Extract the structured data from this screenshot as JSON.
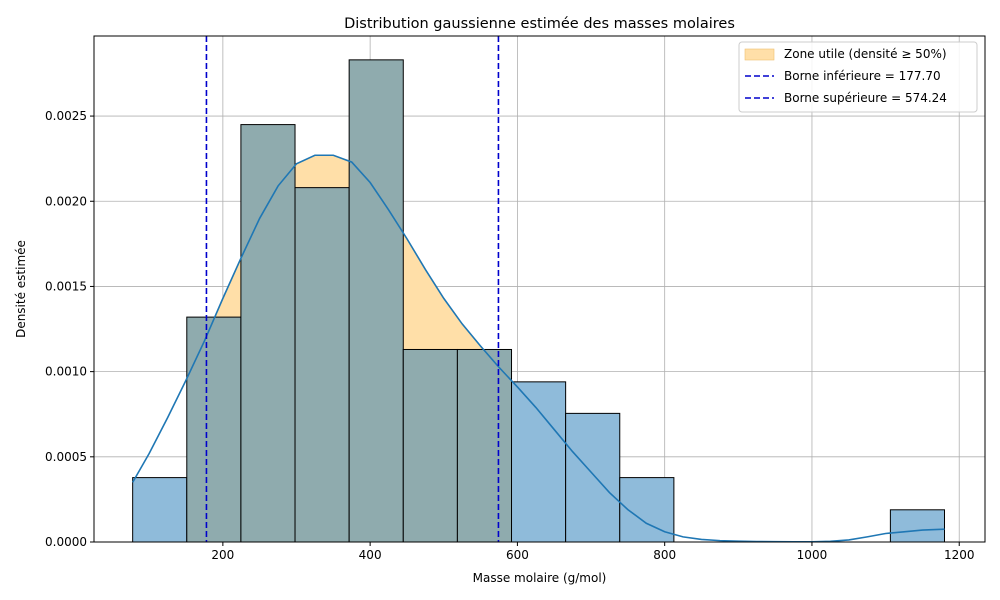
{
  "chart_data": {
    "type": "bar",
    "title": "Distribution gaussienne estimée des masses molaires",
    "xlabel": "Masse molaire (g/mol)",
    "ylabel": "Densité estimée",
    "xlim": [
      25,
      1235
    ],
    "ylim": [
      0,
      0.00297
    ],
    "xticks": [
      200,
      400,
      600,
      800,
      1000,
      1200
    ],
    "yticks": [
      0.0,
      0.0005,
      0.001,
      0.0015,
      0.002,
      0.0025
    ],
    "ytick_labels": [
      "0.0000",
      "0.0005",
      "0.0010",
      "0.0015",
      "0.0020",
      "0.0025"
    ],
    "grid": true,
    "legend_position": "top-right",
    "histogram": {
      "bin_edges": [
        77.5,
        151,
        224.5,
        298,
        371.5,
        445,
        518.5,
        592,
        665.5,
        739,
        812.5,
        886,
        959.5,
        1033,
        1106.5,
        1180
      ],
      "densities": [
        0.000378,
        0.00132,
        0.00245,
        0.00208,
        0.00283,
        0.00113,
        0.00113,
        0.00094,
        0.000755,
        0.000378,
        0,
        0,
        0,
        0,
        0.000189
      ],
      "color": "#1f77b4"
    },
    "kde": {
      "x": [
        77.5,
        100,
        125,
        150,
        175,
        200,
        225,
        250,
        275,
        300,
        325,
        350,
        375,
        400,
        425,
        450,
        475,
        500,
        525,
        550,
        574,
        600,
        625,
        650,
        675,
        700,
        725,
        750,
        775,
        800,
        825,
        850,
        875,
        900,
        925,
        950,
        975,
        1000,
        1025,
        1050,
        1075,
        1100,
        1125,
        1150,
        1180
      ],
      "y": [
        0.00035,
        0.00052,
        0.00073,
        0.00095,
        0.00118,
        0.00143,
        0.00167,
        0.0019,
        0.00209,
        0.00222,
        0.00227,
        0.00227,
        0.00223,
        0.00211,
        0.00195,
        0.00178,
        0.0016,
        0.00143,
        0.00128,
        0.00115,
        0.00103,
        0.00091,
        0.00079,
        0.00066,
        0.00053,
        0.00041,
        0.00029,
        0.00019,
        0.00011,
        6e-05,
        3e-05,
        1.5e-05,
        8e-06,
        5e-06,
        3e-06,
        2e-06,
        1.5e-06,
        1e-06,
        4e-06,
        1.2e-05,
        3e-05,
        5e-05,
        6e-05,
        7e-05,
        7.5e-05
      ],
      "color": "#1f77b4"
    },
    "zone_utile": {
      "from": 177.7,
      "to": 574.24,
      "color": "#ffdfa8"
    },
    "bounds": [
      {
        "value": 177.7,
        "color": "#0000cc"
      },
      {
        "value": 574.24,
        "color": "#0000cc"
      }
    ],
    "legend": [
      {
        "label": "Zone utile (densité ≥ 50%)",
        "kind": "patch",
        "color": "#ffdfa8"
      },
      {
        "label": "Borne inférieure = 177.70",
        "kind": "dashed-line",
        "color": "#0000cc"
      },
      {
        "label": "Borne supérieure = 574.24",
        "kind": "dashed-line",
        "color": "#0000cc"
      }
    ]
  }
}
